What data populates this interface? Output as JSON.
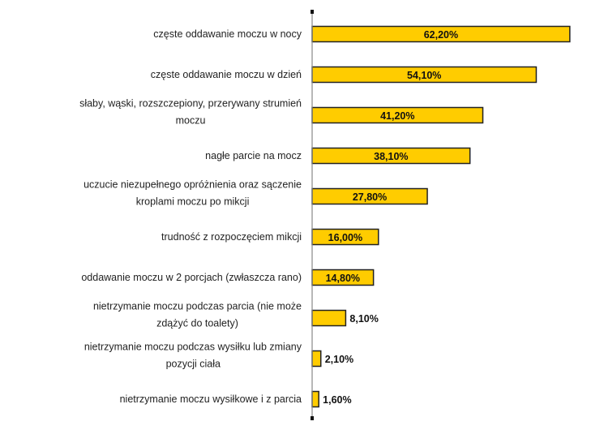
{
  "chart_data": {
    "type": "bar",
    "orientation": "horizontal",
    "categories": [
      "częste oddawanie moczu w nocy",
      "częste oddawanie moczu w dzień",
      "słaby, wąski, rozszczepiony, przerywany strumień moczu",
      "nagłe parcie na mocz",
      "uczucie niezupełnego opróżnienia oraz sączenie kroplami moczu po mikcji",
      "trudność z rozpoczęciem mikcji",
      "oddawanie moczu w 2 porcjach (zwłaszcza rano)",
      "nietrzymanie moczu podczas parcia (nie może zdążyć do toalety)",
      "nietrzymanie moczu podczas wysiłku lub zmiany pozycji ciała",
      "nietrzymanie moczu wysiłkowe i z parcia"
    ],
    "category_lines": [
      [
        "częste oddawanie moczu w nocy"
      ],
      [
        "częste oddawanie moczu w dzień"
      ],
      [
        "słaby, wąski, rozszczepiony, przerywany strumień",
        "moczu"
      ],
      [
        "nagłe parcie na mocz"
      ],
      [
        "uczucie niezupełnego opróżnienia oraz sączenie",
        "kroplami moczu po mikcji"
      ],
      [
        "trudność z rozpoczęciem mikcji"
      ],
      [
        "oddawanie moczu w 2 porcjach (zwłaszcza rano)"
      ],
      [
        "nietrzymanie moczu podczas parcia (nie może",
        "zdążyć do toalety)"
      ],
      [
        "nietrzymanie moczu podczas wysiłku lub zmiany",
        "pozycji ciała"
      ],
      [
        "nietrzymanie moczu wysiłkowe i z parcia"
      ]
    ],
    "values": [
      62.2,
      54.1,
      41.2,
      38.1,
      27.8,
      16.0,
      14.8,
      8.1,
      2.1,
      1.6
    ],
    "data_labels": [
      "62,20%",
      "54,10%",
      "41,20%",
      "38,10%",
      "27,80%",
      "16,00%",
      "14,80%",
      "8,10%",
      "2,10%",
      "1,60%"
    ],
    "xlim": [
      0,
      70
    ],
    "grid": false,
    "legend": "none",
    "colors": {
      "bar": "#FFCC00",
      "bar_border": "#222222",
      "axis": "#888888"
    }
  }
}
